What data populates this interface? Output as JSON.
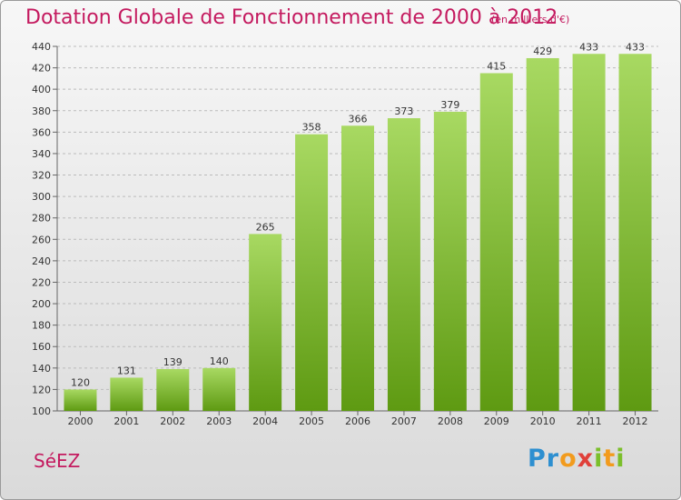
{
  "header": {
    "title": "Dotation Globale de Fonctionnement de 2000 à 2012",
    "subtitle": "(en milliers d'€)"
  },
  "footer": {
    "commune": "SéEZ",
    "brand": "Proxiti"
  },
  "colors": {
    "title": "#c41a5f",
    "bar_light": "#a8d962",
    "bar_dark": "#5e9a12",
    "grid": "#bbbbbb"
  },
  "chart_data": {
    "type": "bar",
    "title": "Dotation Globale de Fonctionnement de 2000 à 2012",
    "subtitle": "(en milliers d'€)",
    "xlabel": "",
    "ylabel": "",
    "categories": [
      "2000",
      "2001",
      "2002",
      "2003",
      "2004",
      "2005",
      "2006",
      "2007",
      "2008",
      "2009",
      "2010",
      "2011",
      "2012"
    ],
    "values": [
      120,
      131,
      139,
      140,
      265,
      358,
      366,
      373,
      379,
      415,
      429,
      433,
      433
    ],
    "ylim": [
      100,
      440
    ],
    "yticks": [
      100,
      120,
      140,
      160,
      180,
      200,
      220,
      240,
      260,
      280,
      300,
      320,
      340,
      360,
      380,
      400,
      420,
      440
    ],
    "grid": true,
    "data_labels": true
  }
}
